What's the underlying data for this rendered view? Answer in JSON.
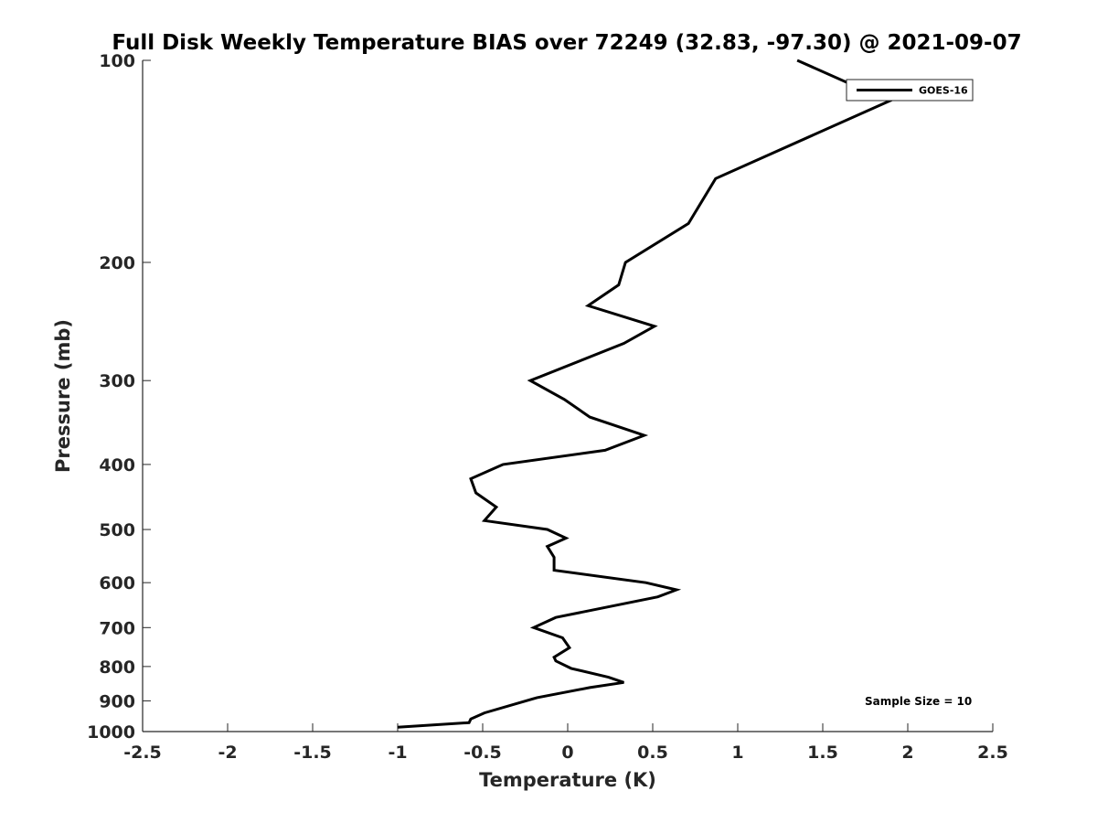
{
  "chart_data": {
    "type": "line",
    "title": "Full Disk Weekly Temperature BIAS over 72249 (32.83, -97.30) @ 2021-09-07",
    "xlabel": "Temperature (K)",
    "ylabel": "Pressure (mb)",
    "xlim": [
      -2.5,
      2.5
    ],
    "ylim": [
      100,
      1000
    ],
    "y_scale": "log",
    "y_reversed": true,
    "x_ticks": [
      "-2.5",
      "-2",
      "-1.5",
      "-1",
      "-0.5",
      "0",
      "0.5",
      "1",
      "1.5",
      "2",
      "2.5"
    ],
    "y_ticks": [
      "100",
      "200",
      "300",
      "400",
      "500",
      "600",
      "700",
      "800",
      "900",
      "1000"
    ],
    "grid": false,
    "legend": {
      "position": "top-right"
    },
    "annotation": "Sample Size = 10",
    "series": [
      {
        "name": "GOES-16",
        "color": "#000000",
        "points": [
          [
            1.35,
            100
          ],
          [
            1.89,
            115
          ],
          [
            0.87,
            150
          ],
          [
            0.71,
            175
          ],
          [
            0.34,
            200
          ],
          [
            0.3,
            216
          ],
          [
            0.12,
            232
          ],
          [
            0.51,
            249
          ],
          [
            0.33,
            264
          ],
          [
            -0.22,
            300
          ],
          [
            -0.02,
            320
          ],
          [
            0.13,
            340
          ],
          [
            0.45,
            362
          ],
          [
            0.22,
            381
          ],
          [
            -0.38,
            400
          ],
          [
            -0.57,
            420
          ],
          [
            -0.54,
            441
          ],
          [
            -0.42,
            463
          ],
          [
            -0.49,
            485
          ],
          [
            -0.12,
            500
          ],
          [
            -0.01,
            515
          ],
          [
            -0.12,
            530
          ],
          [
            -0.08,
            550
          ],
          [
            -0.08,
            575
          ],
          [
            0.46,
            600
          ],
          [
            0.64,
            615
          ],
          [
            0.53,
            630
          ],
          [
            -0.07,
            676
          ],
          [
            -0.2,
            700
          ],
          [
            -0.03,
            725
          ],
          [
            0.01,
            750
          ],
          [
            -0.08,
            775
          ],
          [
            -0.07,
            785
          ],
          [
            0.02,
            805
          ],
          [
            0.24,
            830
          ],
          [
            0.33,
            845
          ],
          [
            0.13,
            860
          ],
          [
            -0.18,
            890
          ],
          [
            -0.49,
            938
          ],
          [
            -0.57,
            958
          ],
          [
            -0.58,
            970
          ],
          [
            -1.0,
            985
          ]
        ]
      }
    ]
  }
}
